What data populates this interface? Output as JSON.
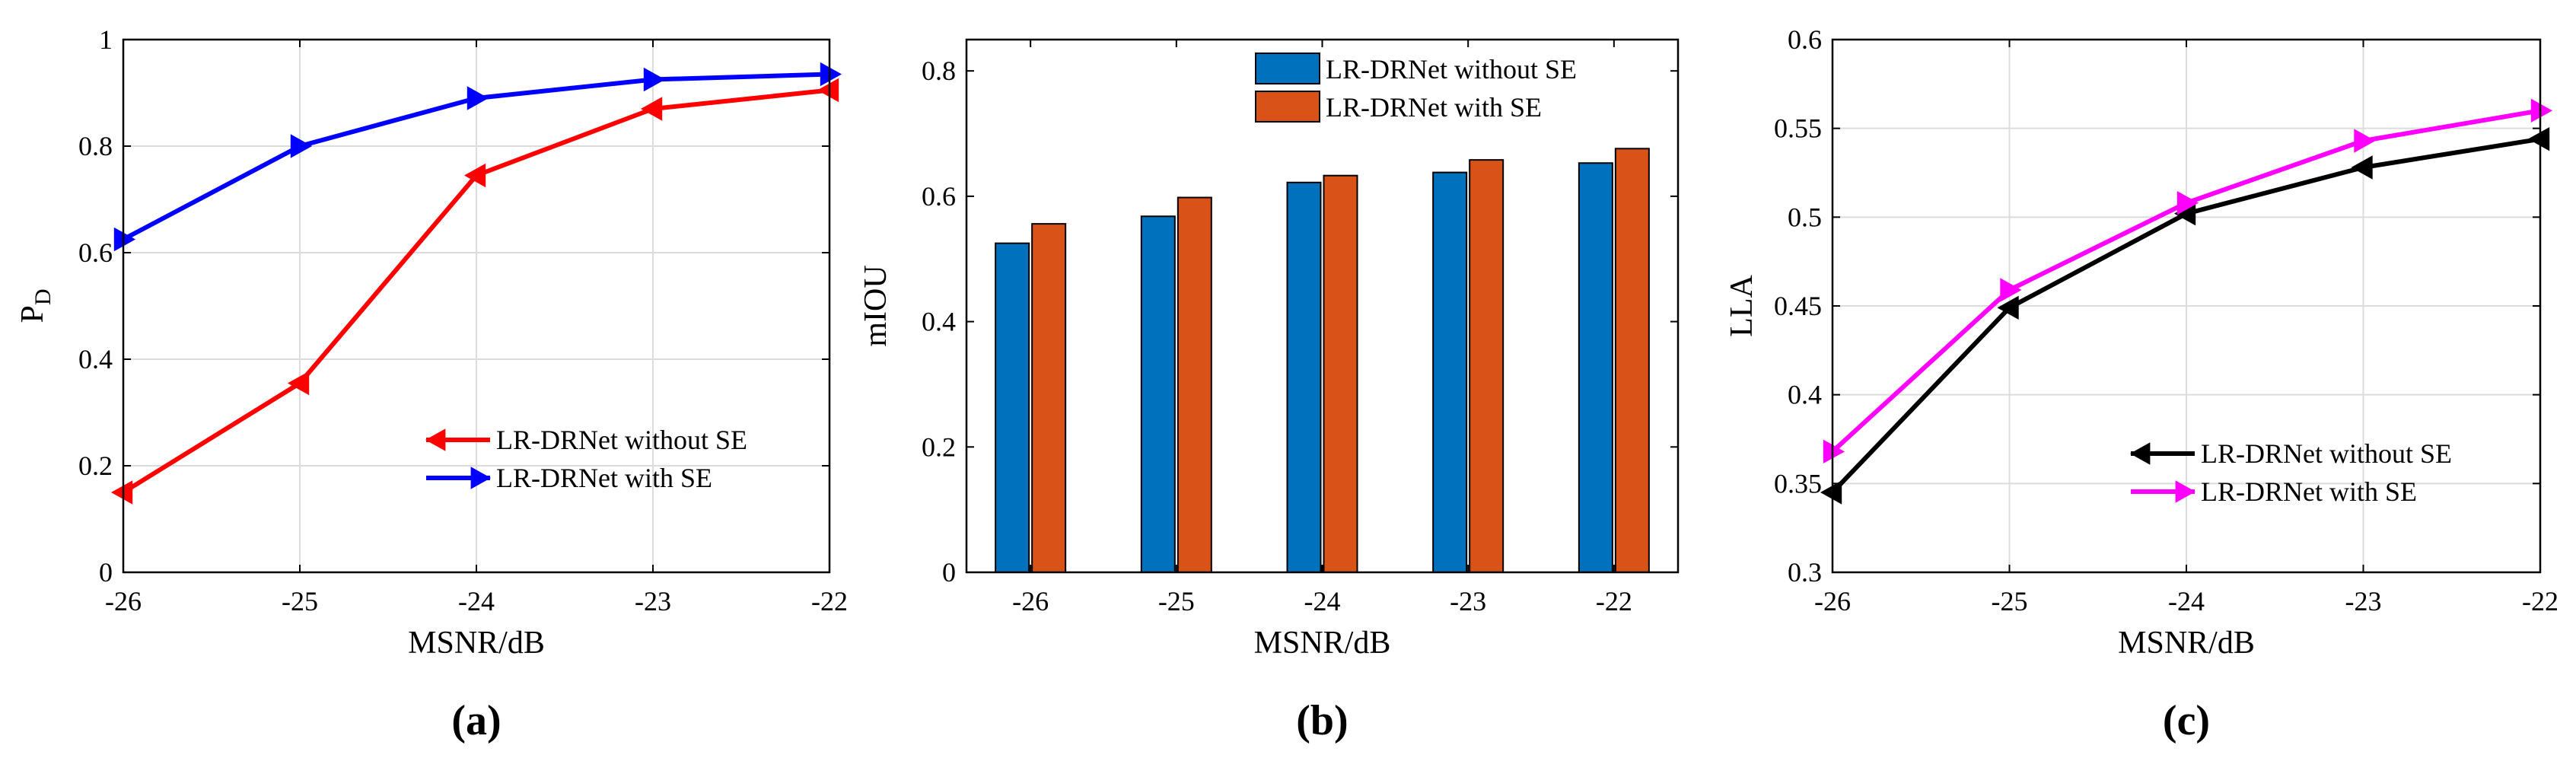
{
  "chart_data": [
    {
      "type": "line",
      "panel_label": "(a)",
      "x": [
        -26,
        -25,
        -24,
        -23,
        -22
      ],
      "xlabel": "MSNR/dB",
      "ylabel": "P",
      "ylabel_sub": "D",
      "xlim": [
        -26,
        -22
      ],
      "ylim": [
        0,
        1
      ],
      "xticks": [
        "-26",
        "-25",
        "-24",
        "-23",
        "-22"
      ],
      "yticks": [
        "0",
        "0.2",
        "0.4",
        "0.6",
        "0.8",
        "1"
      ],
      "grid": true,
      "legend_position": "lower-right",
      "series": [
        {
          "name": "LR-DRNet without SE",
          "values": [
            0.15,
            0.355,
            0.745,
            0.87,
            0.905
          ],
          "color": "#ff0000",
          "marker": "triangle-left"
        },
        {
          "name": "LR-DRNet with SE",
          "values": [
            0.625,
            0.8,
            0.89,
            0.925,
            0.935
          ],
          "color": "#0000ff",
          "marker": "triangle-right"
        }
      ]
    },
    {
      "type": "bar",
      "panel_label": "(b)",
      "categories": [
        "-26",
        "-25",
        "-24",
        "-23",
        "-22"
      ],
      "xlabel": "MSNR/dB",
      "ylabel": "mIOU",
      "ylim": [
        0,
        0.85
      ],
      "yticks": [
        "0",
        "0.2",
        "0.4",
        "0.6",
        "0.8"
      ],
      "grid": false,
      "legend_position": "top-right",
      "series": [
        {
          "name": "LR-DRNet without SE",
          "values": [
            0.525,
            0.568,
            0.622,
            0.638,
            0.653
          ],
          "color": "#0072bd"
        },
        {
          "name": "LR-DRNet with SE",
          "values": [
            0.556,
            0.598,
            0.633,
            0.658,
            0.676
          ],
          "color": "#d95319"
        }
      ]
    },
    {
      "type": "line",
      "panel_label": "(c)",
      "x": [
        -26,
        -25,
        -24,
        -23,
        -22
      ],
      "xlabel": "MSNR/dB",
      "ylabel": "LLA",
      "xlim": [
        -26,
        -22
      ],
      "ylim": [
        0.3,
        0.6
      ],
      "xticks": [
        "-26",
        "-25",
        "-24",
        "-23",
        "-22"
      ],
      "yticks": [
        "0.3",
        "0.35",
        "0.4",
        "0.45",
        "0.5",
        "0.55",
        "0.6"
      ],
      "grid": true,
      "legend_position": "lower-right",
      "series": [
        {
          "name": "LR-DRNet without SE",
          "values": [
            0.345,
            0.449,
            0.502,
            0.528,
            0.544
          ],
          "color": "#000000",
          "marker": "triangle-left"
        },
        {
          "name": "LR-DRNet with SE",
          "values": [
            0.368,
            0.459,
            0.508,
            0.543,
            0.56
          ],
          "color": "#ff00ff",
          "marker": "triangle-right"
        }
      ]
    }
  ]
}
